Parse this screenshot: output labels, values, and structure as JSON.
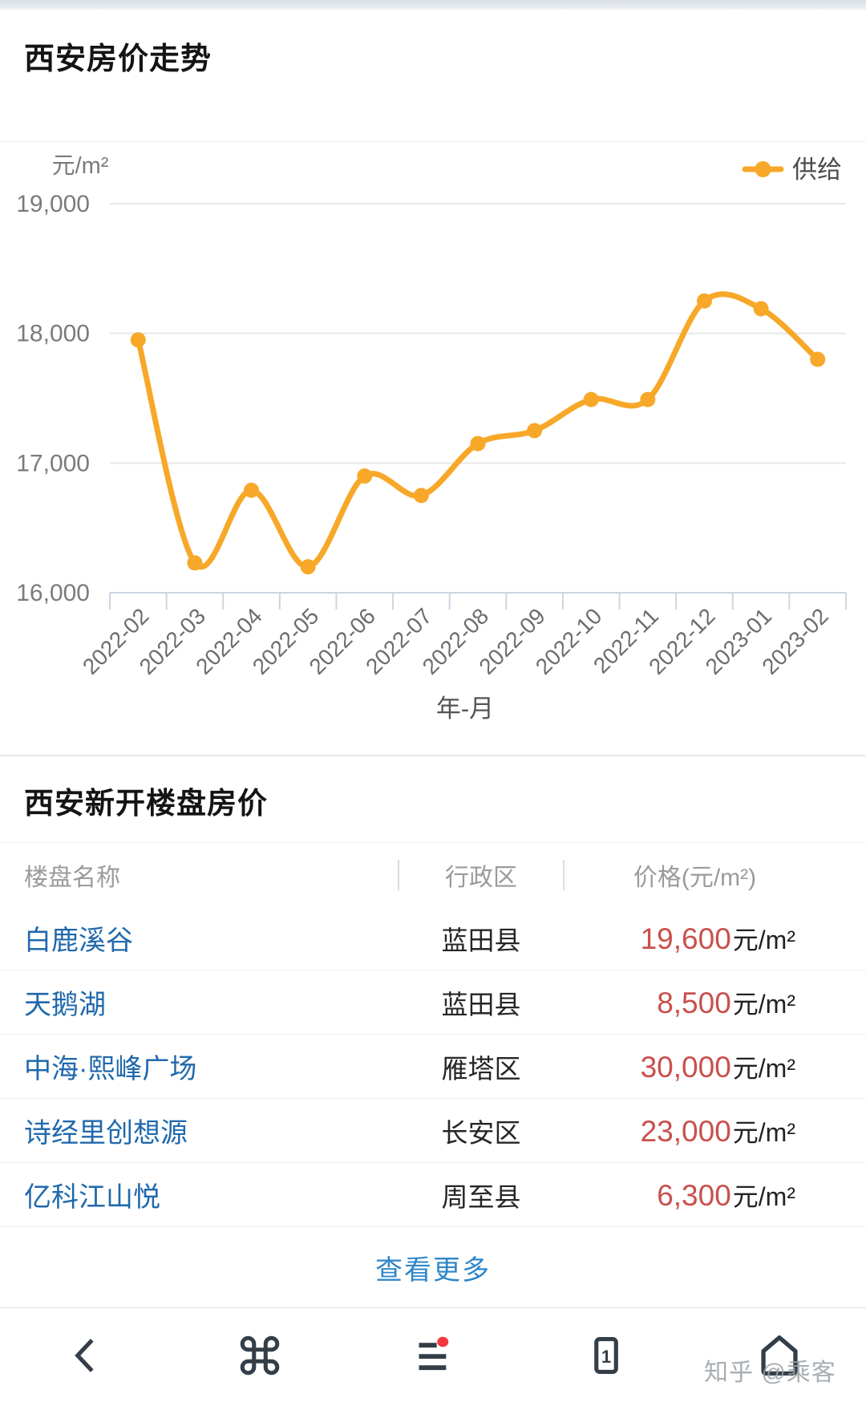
{
  "page": {
    "title": "西安房价走势"
  },
  "chart": {
    "unit_label": "元/m²",
    "legend_label": "供给",
    "line_color": "#f7a828",
    "xaxis_title": "年-月"
  },
  "chart_data": {
    "type": "line",
    "title": "西安房价走势",
    "x": [
      "2022-02",
      "2022-03",
      "2022-04",
      "2022-05",
      "2022-06",
      "2022-07",
      "2022-08",
      "2022-09",
      "2022-10",
      "2022-11",
      "2022-12",
      "2023-01",
      "2023-02"
    ],
    "series": [
      {
        "name": "供给",
        "color": "#f7a828",
        "values": [
          17950,
          16230,
          16790,
          16200,
          16900,
          16750,
          17150,
          17250,
          17490,
          17490,
          18250,
          18190,
          17800
        ]
      }
    ],
    "xlabel": "年-月",
    "ylabel": "元/m²",
    "ylim": [
      16000,
      19000
    ],
    "yticks": [
      16000,
      17000,
      18000,
      19000
    ],
    "grid": true,
    "smooth": true,
    "legend_position": "top-right"
  },
  "table_section": {
    "heading": "西安新开楼盘房价",
    "columns": [
      "楼盘名称",
      "行政区",
      "价格(元/m²)"
    ],
    "rows": [
      {
        "name": "白鹿溪谷",
        "district": "蓝田县",
        "price": "19,600",
        "unit": "元/m²"
      },
      {
        "name": "天鹅湖",
        "district": "蓝田县",
        "price": "8,500",
        "unit": "元/m²"
      },
      {
        "name": "中海·熙峰广场",
        "district": "雁塔区",
        "price": "30,000",
        "unit": "元/m²"
      },
      {
        "name": "诗经里创想源",
        "district": "长安区",
        "price": "23,000",
        "unit": "元/m²"
      },
      {
        "name": "亿科江山悦",
        "district": "周至县",
        "price": "6,300",
        "unit": "元/m²"
      }
    ],
    "more_label": "查看更多"
  },
  "nav": {
    "icons": [
      "back-icon",
      "apps-command-icon",
      "list-badge-icon",
      "window-count-icon",
      "home-icon"
    ],
    "window_count": "1",
    "badge_color": "#f4383f",
    "icon_color": "#333e49"
  },
  "watermark": "知乎 @乘客"
}
